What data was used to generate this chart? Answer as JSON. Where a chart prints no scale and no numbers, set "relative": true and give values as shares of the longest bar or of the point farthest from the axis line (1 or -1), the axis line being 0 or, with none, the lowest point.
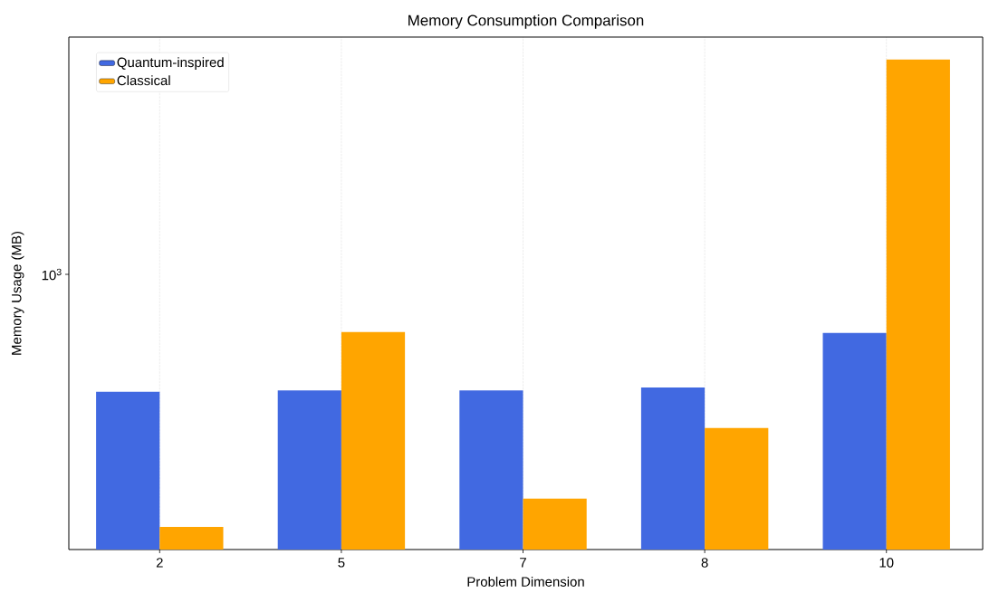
{
  "chart_data": {
    "type": "bar",
    "title": "Memory Consumption Comparison",
    "xlabel": "Problem Dimension",
    "ylabel": "Memory Usage (MB)",
    "categories": [
      "2",
      "5",
      "7",
      "8",
      "10"
    ],
    "series": [
      {
        "name": "Quantum-inspired",
        "color": "#4169e1",
        "values": [
          0.322,
          0.325,
          0.325,
          0.331,
          0.442
        ]
      },
      {
        "name": "Classical",
        "color": "#ffa500",
        "values": [
          0.046,
          0.444,
          0.104,
          0.248,
          1
        ]
      }
    ],
    "relative": true,
    "annotations": [
      "10$^{3}$"
    ],
    "grid": "x",
    "legend": "top left"
  }
}
